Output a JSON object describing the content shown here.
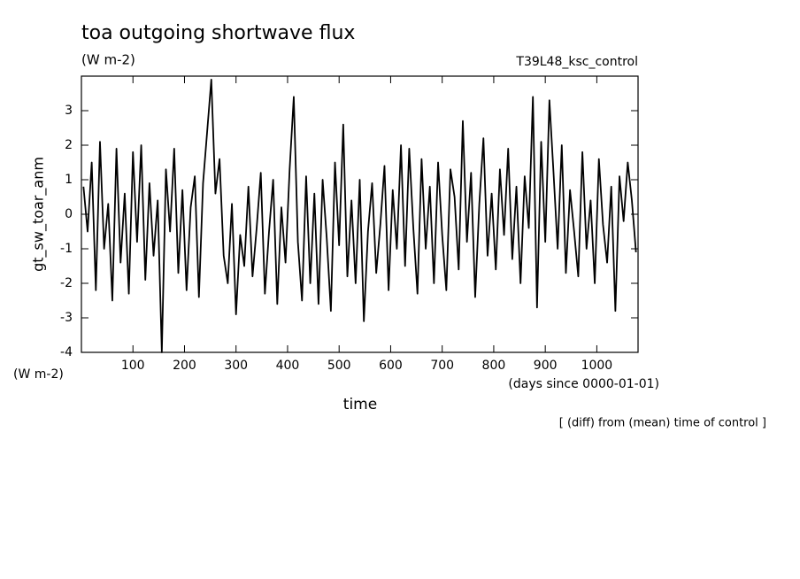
{
  "chart_data": {
    "type": "line",
    "title": "toa outgoing shortwave flux",
    "subtitle": "(W m-2)",
    "run_label": "T39L48_ksc_control",
    "y_label": "gt_sw_toar_anm",
    "y_units": "(W m-2)",
    "x_label": "time",
    "x_units": "(days since 0000-01-01)",
    "note": "[ (diff) from (mean) time of control ]",
    "xlim": [
      0,
      1080
    ],
    "ylim": [
      -4,
      4
    ],
    "xticks": [
      100,
      200,
      300,
      400,
      500,
      600,
      700,
      800,
      900,
      1000
    ],
    "yticks": [
      -4,
      -3,
      -2,
      -1,
      0,
      1,
      2,
      3
    ],
    "x": [
      4,
      12,
      20,
      28,
      36,
      44,
      52,
      60,
      68,
      76,
      84,
      92,
      100,
      108,
      116,
      124,
      132,
      140,
      148,
      156,
      164,
      172,
      180,
      188,
      196,
      204,
      212,
      220,
      228,
      236,
      244,
      252,
      260,
      268,
      276,
      284,
      292,
      300,
      308,
      316,
      324,
      332,
      340,
      348,
      356,
      364,
      372,
      380,
      388,
      396,
      404,
      412,
      420,
      428,
      436,
      444,
      452,
      460,
      468,
      476,
      484,
      492,
      500,
      508,
      516,
      524,
      532,
      540,
      548,
      556,
      564,
      572,
      580,
      588,
      596,
      604,
      612,
      620,
      628,
      636,
      644,
      652,
      660,
      668,
      676,
      684,
      692,
      700,
      708,
      716,
      724,
      732,
      740,
      748,
      756,
      764,
      772,
      780,
      788,
      796,
      804,
      812,
      820,
      828,
      836,
      844,
      852,
      860,
      868,
      876,
      884,
      892,
      900,
      908,
      916,
      924,
      932,
      940,
      948,
      956,
      964,
      972,
      980,
      988,
      996,
      1004,
      1012,
      1020,
      1028,
      1036,
      1044,
      1052,
      1060,
      1068,
      1076
    ],
    "series": [
      {
        "name": "gt_sw_toar_anm",
        "color": "#000000",
        "values": [
          0.8,
          -0.5,
          1.5,
          -2.2,
          2.1,
          -1.0,
          0.3,
          -2.5,
          1.9,
          -1.4,
          0.6,
          -2.3,
          1.8,
          -0.8,
          2.0,
          -1.9,
          0.9,
          -1.2,
          0.4,
          -4.0,
          1.3,
          -0.5,
          1.9,
          -1.7,
          0.7,
          -2.2,
          0.2,
          1.1,
          -2.4,
          0.9,
          2.4,
          3.9,
          0.6,
          1.6,
          -1.2,
          -2.0,
          0.3,
          -2.9,
          -0.6,
          -1.5,
          0.8,
          -1.8,
          -0.4,
          1.2,
          -2.3,
          -0.5,
          1.0,
          -2.6,
          0.2,
          -1.4,
          1.3,
          3.4,
          -0.8,
          -2.5,
          1.1,
          -2.0,
          0.6,
          -2.6,
          1.0,
          -0.7,
          -2.8,
          1.5,
          -0.9,
          2.6,
          -1.8,
          0.4,
          -2.0,
          1.0,
          -3.1,
          -0.5,
          0.9,
          -1.7,
          -0.3,
          1.4,
          -2.2,
          0.7,
          -1.0,
          2.0,
          -1.5,
          1.9,
          -0.4,
          -2.3,
          1.6,
          -1.0,
          0.8,
          -2.0,
          1.5,
          -0.6,
          -2.2,
          1.3,
          0.5,
          -1.6,
          2.7,
          -0.8,
          1.2,
          -2.4,
          0.3,
          2.2,
          -1.2,
          0.6,
          -1.6,
          1.3,
          -0.6,
          1.9,
          -1.3,
          0.8,
          -2.0,
          1.1,
          -0.4,
          3.4,
          -2.7,
          2.1,
          -0.8,
          3.3,
          1.2,
          -1.0,
          2.0,
          -1.7,
          0.7,
          -0.5,
          -1.8,
          1.8,
          -1.0,
          0.4,
          -2.0,
          1.6,
          -0.3,
          -1.4,
          0.8,
          -2.8,
          1.1,
          -0.2,
          1.5,
          0.4,
          -1.1
        ]
      }
    ]
  }
}
